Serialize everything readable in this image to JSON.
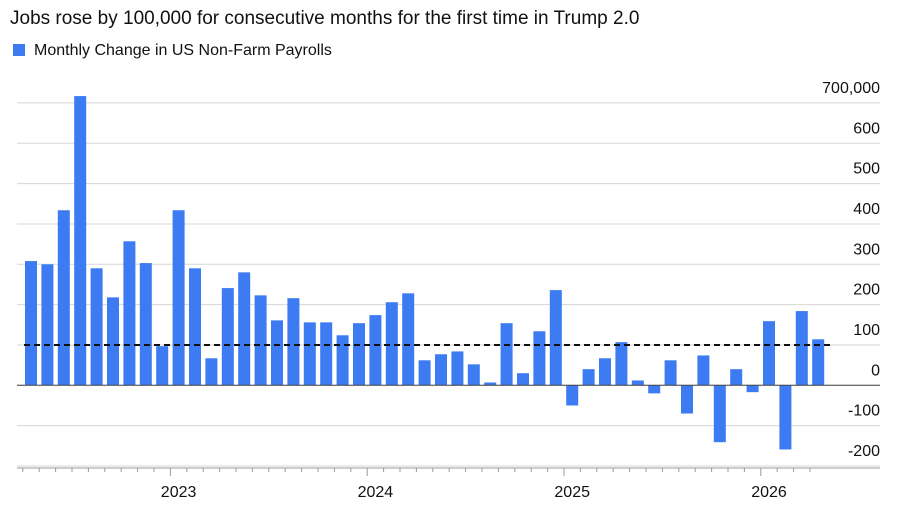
{
  "chart_data": {
    "type": "bar",
    "title": "Jobs rose by 100,000 for consecutive months for the first time in Trump 2.0",
    "series": [
      {
        "name": "Monthly Change in US Non-Farm Payrolls",
        "color": "#3d7bf2",
        "values": [
          308,
          300,
          434,
          717,
          290,
          218,
          357,
          303,
          97,
          434,
          290,
          67,
          241,
          280,
          223,
          161,
          216,
          156,
          156,
          124,
          154,
          174,
          206,
          228,
          62,
          77,
          84,
          52,
          7,
          154,
          30,
          134,
          236,
          -50,
          40,
          67,
          107,
          12,
          -20,
          62,
          -70,
          74,
          -141,
          40,
          -17,
          159,
          -159,
          184,
          114
        ]
      }
    ],
    "categories": [
      null,
      null,
      null,
      null,
      null,
      null,
      null,
      null,
      null,
      "2023",
      null,
      null,
      null,
      null,
      null,
      null,
      null,
      null,
      null,
      null,
      null,
      "2024",
      null,
      null,
      null,
      null,
      null,
      null,
      null,
      null,
      null,
      null,
      null,
      "2025",
      null,
      null,
      null,
      null,
      null,
      null,
      null,
      null,
      null,
      null,
      null,
      "2026",
      null,
      null,
      null
    ],
    "ylim": [
      -205,
      737
    ],
    "yticks": [
      -200,
      -100,
      0,
      100,
      200,
      300,
      400,
      500,
      600,
      {
        "value": 700,
        "label": "700,000"
      }
    ],
    "reference_line": 100,
    "grid": true
  }
}
